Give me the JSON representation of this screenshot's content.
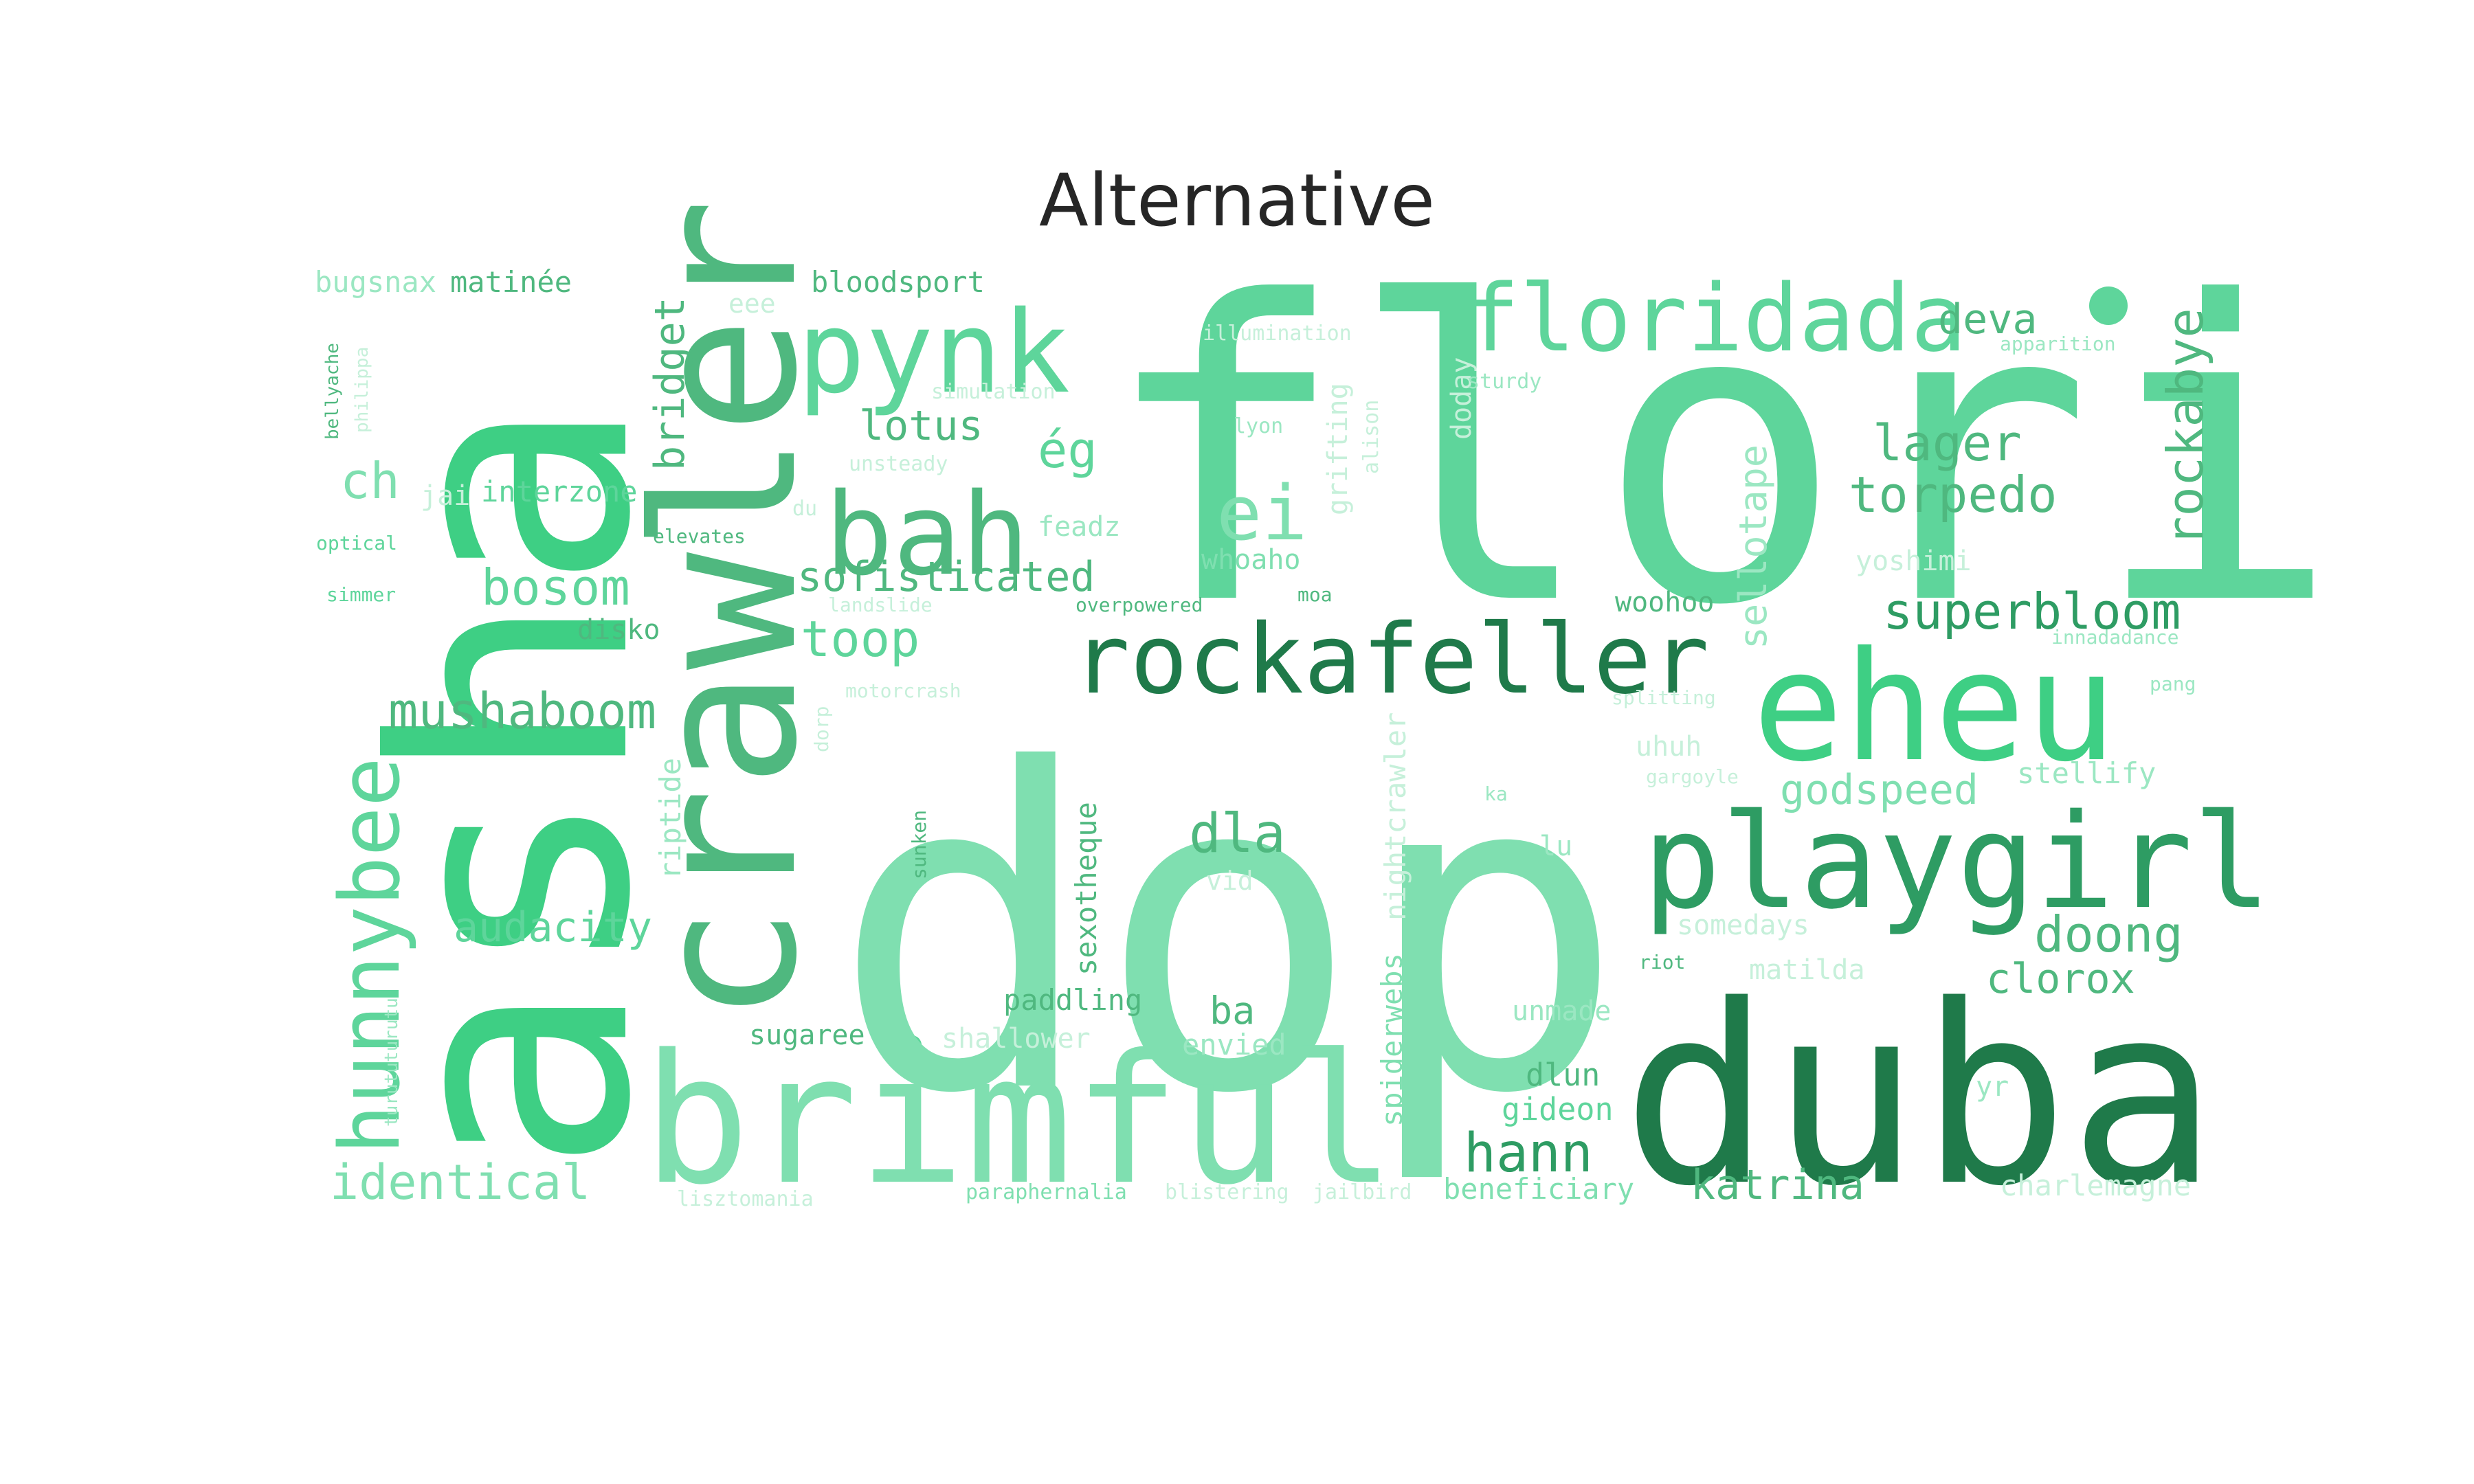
{
  "chart_data": {
    "type": "wordcloud",
    "title": "Alternative",
    "colors": [
      "#5ed59b",
      "#3ecf84",
      "#7fdfb0",
      "#2e9c63",
      "#1f7a4a",
      "#9be7c2",
      "#c6f0da",
      "#4fb87f"
    ],
    "words": [
      {
        "text": "flori",
        "weight": 100,
        "color": "#5ed59b"
      },
      {
        "text": "dop",
        "weight": 98,
        "color": "#7fdfb0"
      },
      {
        "text": "asha",
        "weight": 90,
        "color": "#3ecf84"
      },
      {
        "text": "duba",
        "weight": 74,
        "color": "#1f7a4a"
      },
      {
        "text": "crawler",
        "weight": 62,
        "color": "#4fb87f"
      },
      {
        "text": "brimful",
        "weight": 58,
        "color": "#7fdfb0"
      },
      {
        "text": "eheu",
        "weight": 46,
        "color": "#3ecf84"
      },
      {
        "text": "playgirl",
        "weight": 40,
        "color": "#2e9c63"
      },
      {
        "text": "bah",
        "weight": 34,
        "color": "#4fb87f"
      },
      {
        "text": "pynk",
        "weight": 34,
        "color": "#5ed59b"
      },
      {
        "text": "rockafeller",
        "weight": 32,
        "color": "#1f7a4a"
      },
      {
        "text": "floridada",
        "weight": 30,
        "color": "#5ed59b"
      },
      {
        "text": "hunnybee",
        "weight": 28,
        "color": "#5ed59b"
      },
      {
        "text": "ei",
        "weight": 24,
        "color": "#7fdfb0"
      },
      {
        "text": "hann",
        "weight": 20,
        "color": "#2e9c63"
      },
      {
        "text": "dla",
        "weight": 20,
        "color": "#4fb87f"
      },
      {
        "text": "superbloom",
        "weight": 18,
        "color": "#2e9c63"
      },
      {
        "text": "torpedo",
        "weight": 18,
        "color": "#4fb87f"
      },
      {
        "text": "lager",
        "weight": 18,
        "color": "#4fb87f"
      },
      {
        "text": "doong",
        "weight": 18,
        "color": "#4fb87f"
      },
      {
        "text": "rockabye",
        "weight": 18,
        "color": "#4fb87f"
      },
      {
        "text": "mushaboom",
        "weight": 18,
        "color": "#4fb87f"
      },
      {
        "text": "toop",
        "weight": 18,
        "color": "#5ed59b"
      },
      {
        "text": "bosom",
        "weight": 18,
        "color": "#5ed59b"
      },
      {
        "text": "ég",
        "weight": 18,
        "color": "#5ed59b"
      },
      {
        "text": "ch",
        "weight": 18,
        "color": "#7fdfb0"
      },
      {
        "text": "identical",
        "weight": 17,
        "color": "#7fdfb0"
      },
      {
        "text": "audacity",
        "weight": 16,
        "color": "#5ed59b"
      },
      {
        "text": "sofisticated",
        "weight": 16,
        "color": "#4fb87f"
      },
      {
        "text": "godspeed",
        "weight": 16,
        "color": "#7fdfb0"
      },
      {
        "text": "clorox",
        "weight": 16,
        "color": "#4fb87f"
      },
      {
        "text": "katrina",
        "weight": 16,
        "color": "#4fb87f"
      },
      {
        "text": "deva",
        "weight": 16,
        "color": "#4fb87f"
      },
      {
        "text": "lotus",
        "weight": 16,
        "color": "#4fb87f"
      },
      {
        "text": "bridget",
        "weight": 16,
        "color": "#4fb87f"
      },
      {
        "text": "sellotape",
        "weight": 14,
        "color": "#9be7c2"
      },
      {
        "text": "ba",
        "weight": 14,
        "color": "#4fb87f"
      },
      {
        "text": "dlun",
        "weight": 13,
        "color": "#4fb87f"
      },
      {
        "text": "gideon",
        "weight": 13,
        "color": "#5ed59b"
      },
      {
        "text": "stellify",
        "weight": 12,
        "color": "#9be7c2"
      },
      {
        "text": "interzone",
        "weight": 12,
        "color": "#5ed59b"
      },
      {
        "text": "paddling",
        "weight": 12,
        "color": "#4fb87f"
      },
      {
        "text": "sexotheque",
        "weight": 12,
        "color": "#4fb87f"
      },
      {
        "text": "nightcrawler",
        "weight": 12,
        "color": "#c6f0da"
      },
      {
        "text": "spiderwebs",
        "weight": 12,
        "color": "#7fdfb0"
      },
      {
        "text": "riptide",
        "weight": 12,
        "color": "#9be7c2"
      },
      {
        "text": "beneficiary",
        "weight": 12,
        "color": "#7fdfb0"
      },
      {
        "text": "charlemagne",
        "weight": 12,
        "color": "#c6f0da"
      },
      {
        "text": "matinée",
        "weight": 12,
        "color": "#4fb87f"
      },
      {
        "text": "bugsnax",
        "weight": 12,
        "color": "#9be7c2"
      },
      {
        "text": "bloodsport",
        "weight": 12,
        "color": "#4fb87f"
      },
      {
        "text": "envied",
        "weight": 12,
        "color": "#9be7c2"
      },
      {
        "text": "sugaree",
        "weight": 11,
        "color": "#4fb87f"
      },
      {
        "text": "shallower",
        "weight": 11,
        "color": "#c6f0da"
      },
      {
        "text": "disko",
        "weight": 11,
        "color": "#4fb87f"
      },
      {
        "text": "feadz",
        "weight": 11,
        "color": "#9be7c2"
      },
      {
        "text": "whoaho",
        "weight": 11,
        "color": "#7fdfb0"
      },
      {
        "text": "woohoo",
        "weight": 11,
        "color": "#4fb87f"
      },
      {
        "text": "yoshimi",
        "weight": 11,
        "color": "#c6f0da"
      },
      {
        "text": "uhuh",
        "weight": 11,
        "color": "#c6f0da"
      },
      {
        "text": "lu",
        "weight": 11,
        "color": "#9be7c2"
      },
      {
        "text": "unmade",
        "weight": 11,
        "color": "#9be7c2"
      },
      {
        "text": "matilda",
        "weight": 11,
        "color": "#c6f0da"
      },
      {
        "text": "somedays",
        "weight": 11,
        "color": "#c6f0da"
      },
      {
        "text": "yr",
        "weight": 11,
        "color": "#9be7c2"
      },
      {
        "text": "grifting",
        "weight": 11,
        "color": "#c6f0da"
      },
      {
        "text": "doday",
        "weight": 11,
        "color": "#c6f0da"
      },
      {
        "text": "jai",
        "weight": 11,
        "color": "#c6f0da"
      },
      {
        "text": "vid",
        "weight": 10,
        "color": "#c6f0da"
      },
      {
        "text": "eee",
        "weight": 10,
        "color": "#c6f0da"
      },
      {
        "text": "illumination",
        "weight": 8,
        "color": "#c6f0da"
      },
      {
        "text": "simulation",
        "weight": 8,
        "color": "#c6f0da"
      },
      {
        "text": "sturdy",
        "weight": 8,
        "color": "#9be7c2"
      },
      {
        "text": "lyon",
        "weight": 8,
        "color": "#9be7c2"
      },
      {
        "text": "unsteady",
        "weight": 8,
        "color": "#c6f0da"
      },
      {
        "text": "alison",
        "weight": 8,
        "color": "#c6f0da"
      },
      {
        "text": "du",
        "weight": 8,
        "color": "#c6f0da"
      },
      {
        "text": "elevates",
        "weight": 8,
        "color": "#4fb87f"
      },
      {
        "text": "landslide",
        "weight": 8,
        "color": "#c6f0da"
      },
      {
        "text": "overpowered",
        "weight": 8,
        "color": "#4fb87f"
      },
      {
        "text": "moa",
        "weight": 8,
        "color": "#4fb87f"
      },
      {
        "text": "motorcrash",
        "weight": 8,
        "color": "#c6f0da"
      },
      {
        "text": "dorp",
        "weight": 8,
        "color": "#c6f0da"
      },
      {
        "text": "splitting",
        "weight": 8,
        "color": "#c6f0da"
      },
      {
        "text": "gargoyle",
        "weight": 8,
        "color": "#c6f0da"
      },
      {
        "text": "ka",
        "weight": 8,
        "color": "#9be7c2"
      },
      {
        "text": "riot",
        "weight": 8,
        "color": "#4fb87f"
      },
      {
        "text": "innadadance",
        "weight": 8,
        "color": "#9be7c2"
      },
      {
        "text": "apparition",
        "weight": 8,
        "color": "#9be7c2"
      },
      {
        "text": "pang",
        "weight": 8,
        "color": "#9be7c2"
      },
      {
        "text": "sunken",
        "weight": 8,
        "color": "#4fb87f"
      },
      {
        "text": "optical",
        "weight": 8,
        "color": "#5ed59b"
      },
      {
        "text": "simmer",
        "weight": 8,
        "color": "#5ed59b"
      },
      {
        "text": "bellyache",
        "weight": 8,
        "color": "#4fb87f"
      },
      {
        "text": "philippa",
        "weight": 8,
        "color": "#c6f0da"
      },
      {
        "text": "turututurutu",
        "weight": 8,
        "color": "#9be7c2"
      },
      {
        "text": "lisztomania",
        "weight": 8,
        "color": "#c6f0da"
      },
      {
        "text": "paraphernalia",
        "weight": 8,
        "color": "#7fdfb0"
      },
      {
        "text": "blistering",
        "weight": 8,
        "color": "#c6f0da"
      },
      {
        "text": "jailbird",
        "weight": 8,
        "color": "#c6f0da"
      }
    ]
  }
}
